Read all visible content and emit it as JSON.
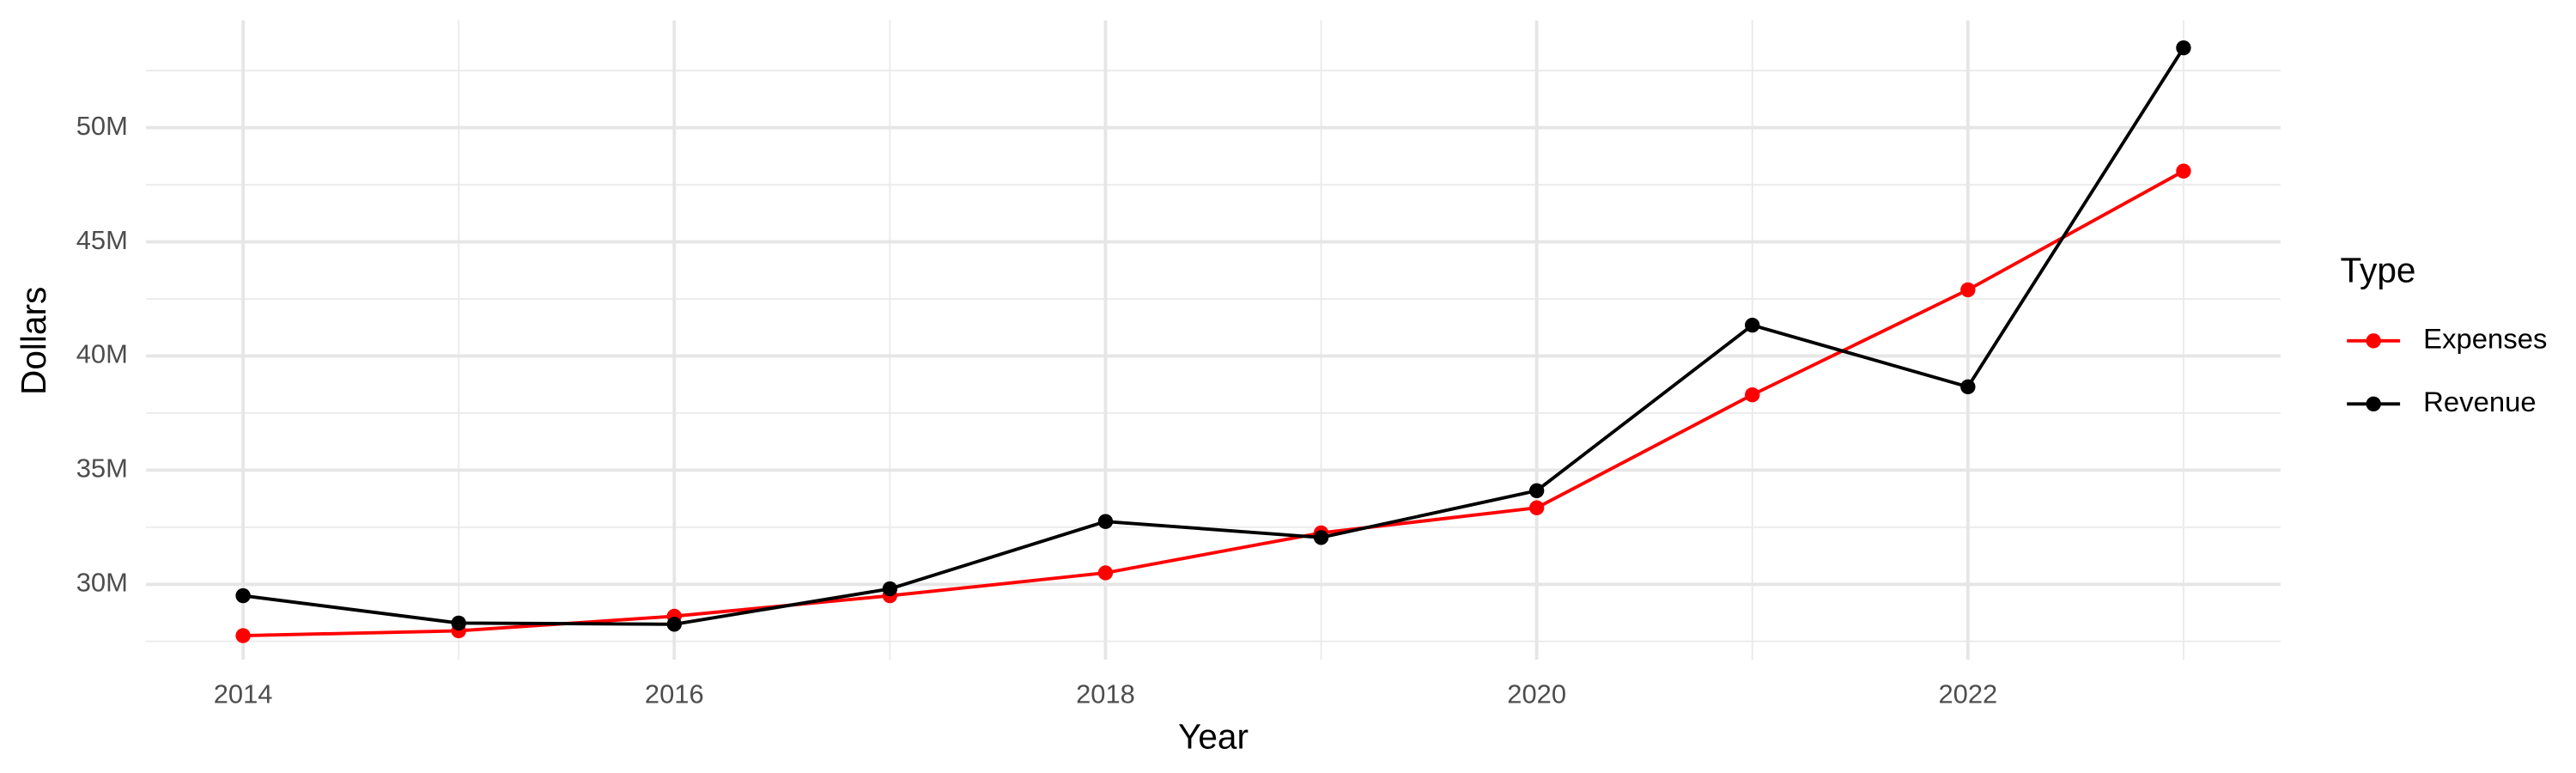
{
  "chart_data": {
    "type": "line",
    "x_label": "Year",
    "y_label": "Dollars",
    "x": [
      2014,
      2015,
      2016,
      2017,
      2018,
      2019,
      2020,
      2021,
      2022,
      2023
    ],
    "series": [
      {
        "name": "Expenses",
        "color": "#ff0000",
        "values": [
          27750000,
          27960000,
          28600000,
          29500000,
          30500000,
          32250000,
          33350000,
          38300000,
          42900000,
          48100000
        ]
      },
      {
        "name": "Revenue",
        "color": "#000000",
        "values": [
          29500000,
          28300000,
          28250000,
          29800000,
          32750000,
          32050000,
          34100000,
          41350000,
          38650000,
          53500000
        ]
      }
    ],
    "xlim": [
      2013.55,
      2023.45
    ],
    "xticks": [
      2014,
      2016,
      2018,
      2020,
      2022
    ],
    "ylim": [
      26700000,
      54700000
    ],
    "yticks": [
      {
        "value": 30000000,
        "label": "30M"
      },
      {
        "value": 35000000,
        "label": "35M"
      },
      {
        "value": 40000000,
        "label": "40M"
      },
      {
        "value": 45000000,
        "label": "45M"
      },
      {
        "value": 50000000,
        "label": "50M"
      }
    ],
    "grid": true,
    "legend_title": "Type",
    "legend_position": "right"
  }
}
